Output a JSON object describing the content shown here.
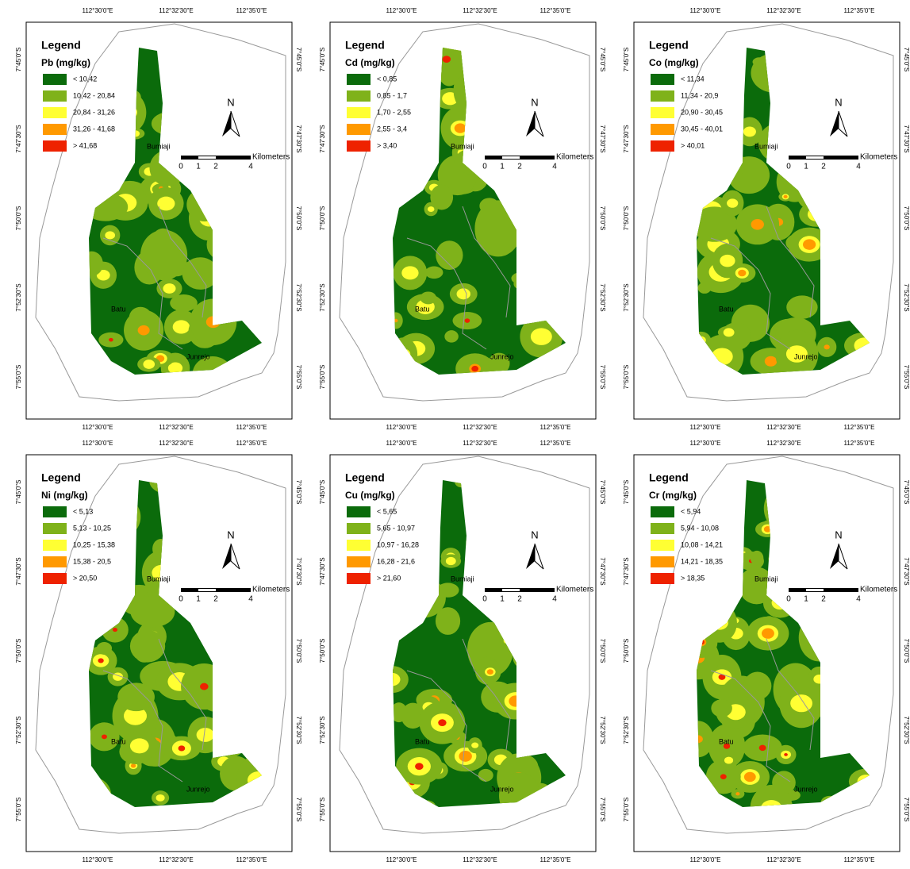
{
  "legend_heading": "Legend",
  "lon_labels": [
    "112°30'0\"E",
    "112°32'30\"E",
    "112°35'0\"E"
  ],
  "lat_labels": [
    "7°45'0\"S",
    "7°47'30\"S",
    "7°50'0\"S",
    "7°52'30\"S",
    "7°55'0\"S"
  ],
  "scale": {
    "ticks": [
      "0",
      "1",
      "2",
      "4"
    ],
    "unit": "Kilometers"
  },
  "north": "N",
  "places": [
    "Bumiaji",
    "Batu",
    "Junrejo"
  ],
  "class_colors": [
    "#0b6b0b",
    "#7fb21a",
    "#ffff33",
    "#ff9900",
    "#ee2200"
  ],
  "panels": [
    {
      "title": "Pb (mg/kg)",
      "classes": [
        "< 10,42",
        "10,42 - 20,84",
        "20,84 - 31,26",
        "31,26 - 41,68",
        "> 41,68"
      ]
    },
    {
      "title": "Cd (mg/kg)",
      "classes": [
        "< 0,85",
        "0,85 - 1,7",
        "1,70 - 2,55",
        "2,55 - 3,4",
        "> 3,40"
      ]
    },
    {
      "title": "Co (mg/kg)",
      "classes": [
        "< 11,34",
        "11,34 - 20,9",
        "20,90 - 30,45",
        "30,45 - 40,01",
        "> 40,01"
      ]
    },
    {
      "title": "Ni (mg/kg)",
      "classes": [
        "< 5,13",
        "5,13 - 10,25",
        "10,25 - 15,38",
        "15,38 - 20,5",
        "> 20,50"
      ]
    },
    {
      "title": "Cu (mg/kg)",
      "classes": [
        "< 5,65",
        "5,65 - 10,97",
        "10,97 - 16,28",
        "16,28 - 21,6",
        "> 21,60"
      ]
    },
    {
      "title": "Cr (mg/kg)",
      "classes": [
        "< 5,94",
        "5,94 - 10,08",
        "10,08 - 14,21",
        "14,21 - 18,35",
        "> 18,35"
      ]
    }
  ]
}
